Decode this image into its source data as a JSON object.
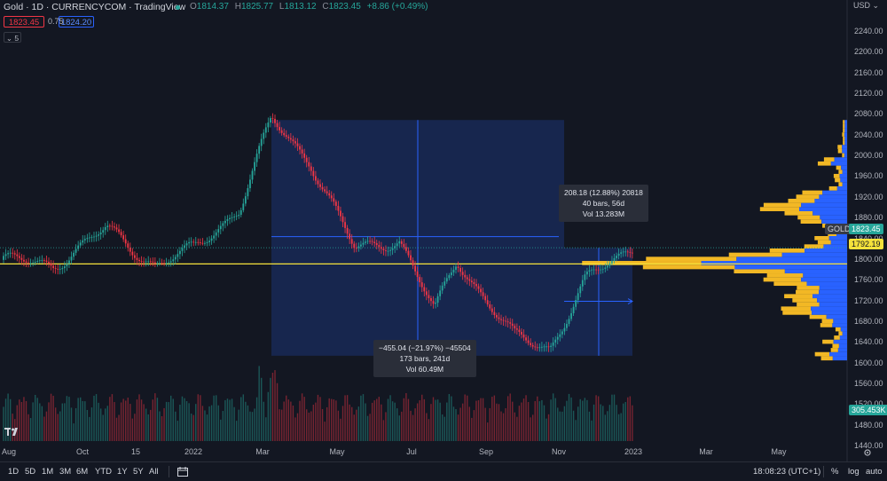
{
  "header": {
    "title": "Gold · 1D · CURRENCYCOM · TradingView",
    "ohlc": [
      {
        "key": "O",
        "value": "1814.37"
      },
      {
        "key": "H",
        "value": "1825.77"
      },
      {
        "key": "L",
        "value": "1813.12"
      },
      {
        "key": "C",
        "value": "1823.45"
      }
    ],
    "change": "+8.86 (+0.49%)",
    "sell_price": "1823.45",
    "spread": "0.75",
    "buy_price": "1824.20",
    "indicators_toggle": "⌄ 5"
  },
  "colors": {
    "background": "#131722",
    "up": "#26a69a",
    "down": "#f23645",
    "accent": "#2962ff",
    "profile_up": "#f2b825",
    "profile_down": "#2962ff",
    "poc_line": "#f5e23b"
  },
  "y_axis": {
    "currency": "USD",
    "labels": [
      "2240.00",
      "2200.00",
      "2160.00",
      "2120.00",
      "2080.00",
      "2040.00",
      "2000.00",
      "1960.00",
      "1920.00",
      "1880.00",
      "1840.00",
      "1800.00",
      "1760.00",
      "1720.00",
      "1680.00",
      "1640.00",
      "1600.00",
      "1560.00",
      "1520.00",
      "1480.00",
      "1440.00"
    ],
    "symbol_badge": "GOLD",
    "last_price_badge": "1823.45",
    "poc_badge": "1792.19",
    "volume_badge": "305.453K"
  },
  "x_axis": {
    "labels": [
      "Aug",
      "Oct",
      "15",
      "2022",
      "Mar",
      "May",
      "Jul",
      "Sep",
      "Nov",
      "2023",
      "Mar",
      "May"
    ]
  },
  "measure_down": {
    "line1": "−455.04 (−21.97%) −45504",
    "line2": "173 bars, 241d",
    "line3": "Vol 60.49M"
  },
  "measure_up": {
    "line1": "208.18 (12.88%) 20818",
    "line2": "40 bars, 56d",
    "line3": "Vol 13.283M"
  },
  "chart_data": {
    "type": "candlestick",
    "y_range": [
      1420,
      2260
    ],
    "price_anchors": [
      {
        "x": "Aug 2021",
        "y": 1800
      },
      {
        "x": "Sep 2021",
        "y": 1790
      },
      {
        "x": "Nov 2021",
        "y": 1860
      },
      {
        "x": "Dec 2021",
        "y": 1790
      },
      {
        "x": "Jan 2022",
        "y": 1820
      },
      {
        "x": "Feb 2022",
        "y": 1900
      },
      {
        "x": "Mar 2022",
        "y": 2070
      },
      {
        "x": "Apr 2022",
        "y": 1990
      },
      {
        "x": "May 2022",
        "y": 1820
      },
      {
        "x": "Jun 2022",
        "y": 1840
      },
      {
        "x": "Jul 2022",
        "y": 1700
      },
      {
        "x": "Aug 2022",
        "y": 1800
      },
      {
        "x": "Sep 2022",
        "y": 1650
      },
      {
        "x": "Oct 2022",
        "y": 1630
      },
      {
        "x": "Nov 2022",
        "y": 1760
      },
      {
        "x": "Dec 2022",
        "y": 1823
      }
    ],
    "measure_top_price": 2070,
    "measure_bottom_price": 1615,
    "horizontal_marker_price": 1845,
    "poc_price": 1792.19,
    "last_price": 1823.45
  }
}
